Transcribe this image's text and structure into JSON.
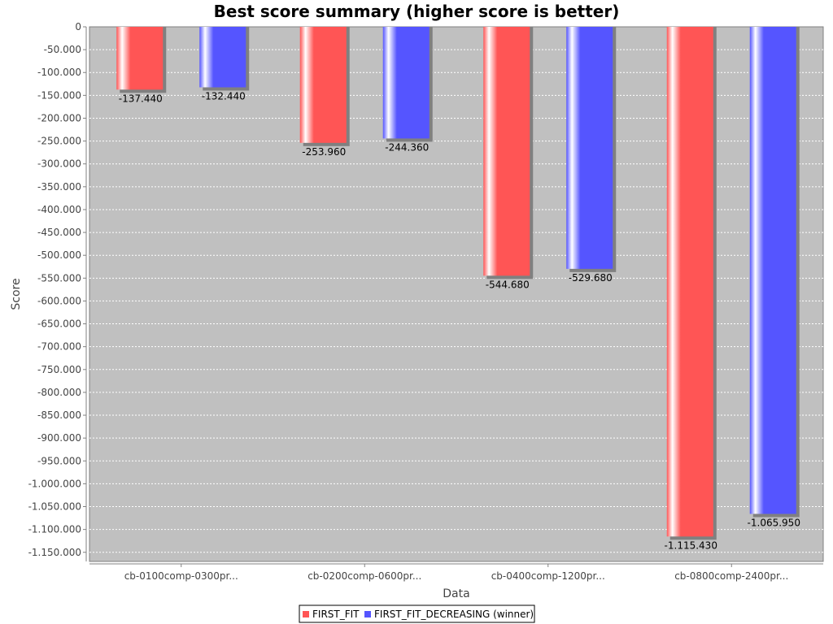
{
  "chart_data": {
    "type": "bar",
    "title": "Best score summary (higher score is better)",
    "xlabel": "Data",
    "ylabel": "Score",
    "categories": [
      "cb-0100comp-0300pr...",
      "cb-0200comp-0600pr...",
      "cb-0400comp-1200pr...",
      "cb-0800comp-2400pr..."
    ],
    "series": [
      {
        "name": "FIRST_FIT",
        "color": "#ff5555",
        "values": [
          -137440,
          -253960,
          -544680,
          -1115430
        ],
        "labels": [
          "-137.440",
          "-253.960",
          "-544.680",
          "-1.115.430"
        ]
      },
      {
        "name": "FIRST_FIT_DECREASING (winner)",
        "color": "#5555ff",
        "values": [
          -132440,
          -244360,
          -529680,
          -1065950
        ],
        "labels": [
          "-132.440",
          "-244.360",
          "-529.680",
          "-1.065.950"
        ]
      }
    ],
    "ylim": [
      -1170000,
      0
    ],
    "yticks": [
      0,
      -50000,
      -100000,
      -150000,
      -200000,
      -250000,
      -300000,
      -350000,
      -400000,
      -450000,
      -500000,
      -550000,
      -600000,
      -650000,
      -700000,
      -750000,
      -800000,
      -850000,
      -900000,
      -950000,
      -1000000,
      -1050000,
      -1100000,
      -1150000
    ],
    "ytick_labels": [
      "0",
      "-50.000",
      "-100.000",
      "-150.000",
      "-200.000",
      "-250.000",
      "-300.000",
      "-350.000",
      "-400.000",
      "-450.000",
      "-500.000",
      "-550.000",
      "-600.000",
      "-650.000",
      "-700.000",
      "-750.000",
      "-800.000",
      "-850.000",
      "-900.000",
      "-950.000",
      "-1.000.000",
      "-1.050.000",
      "-1.100.000",
      "-1.150.000"
    ],
    "grid": true,
    "legend": "bottom-center",
    "plot_background": "#c0c0c0"
  }
}
